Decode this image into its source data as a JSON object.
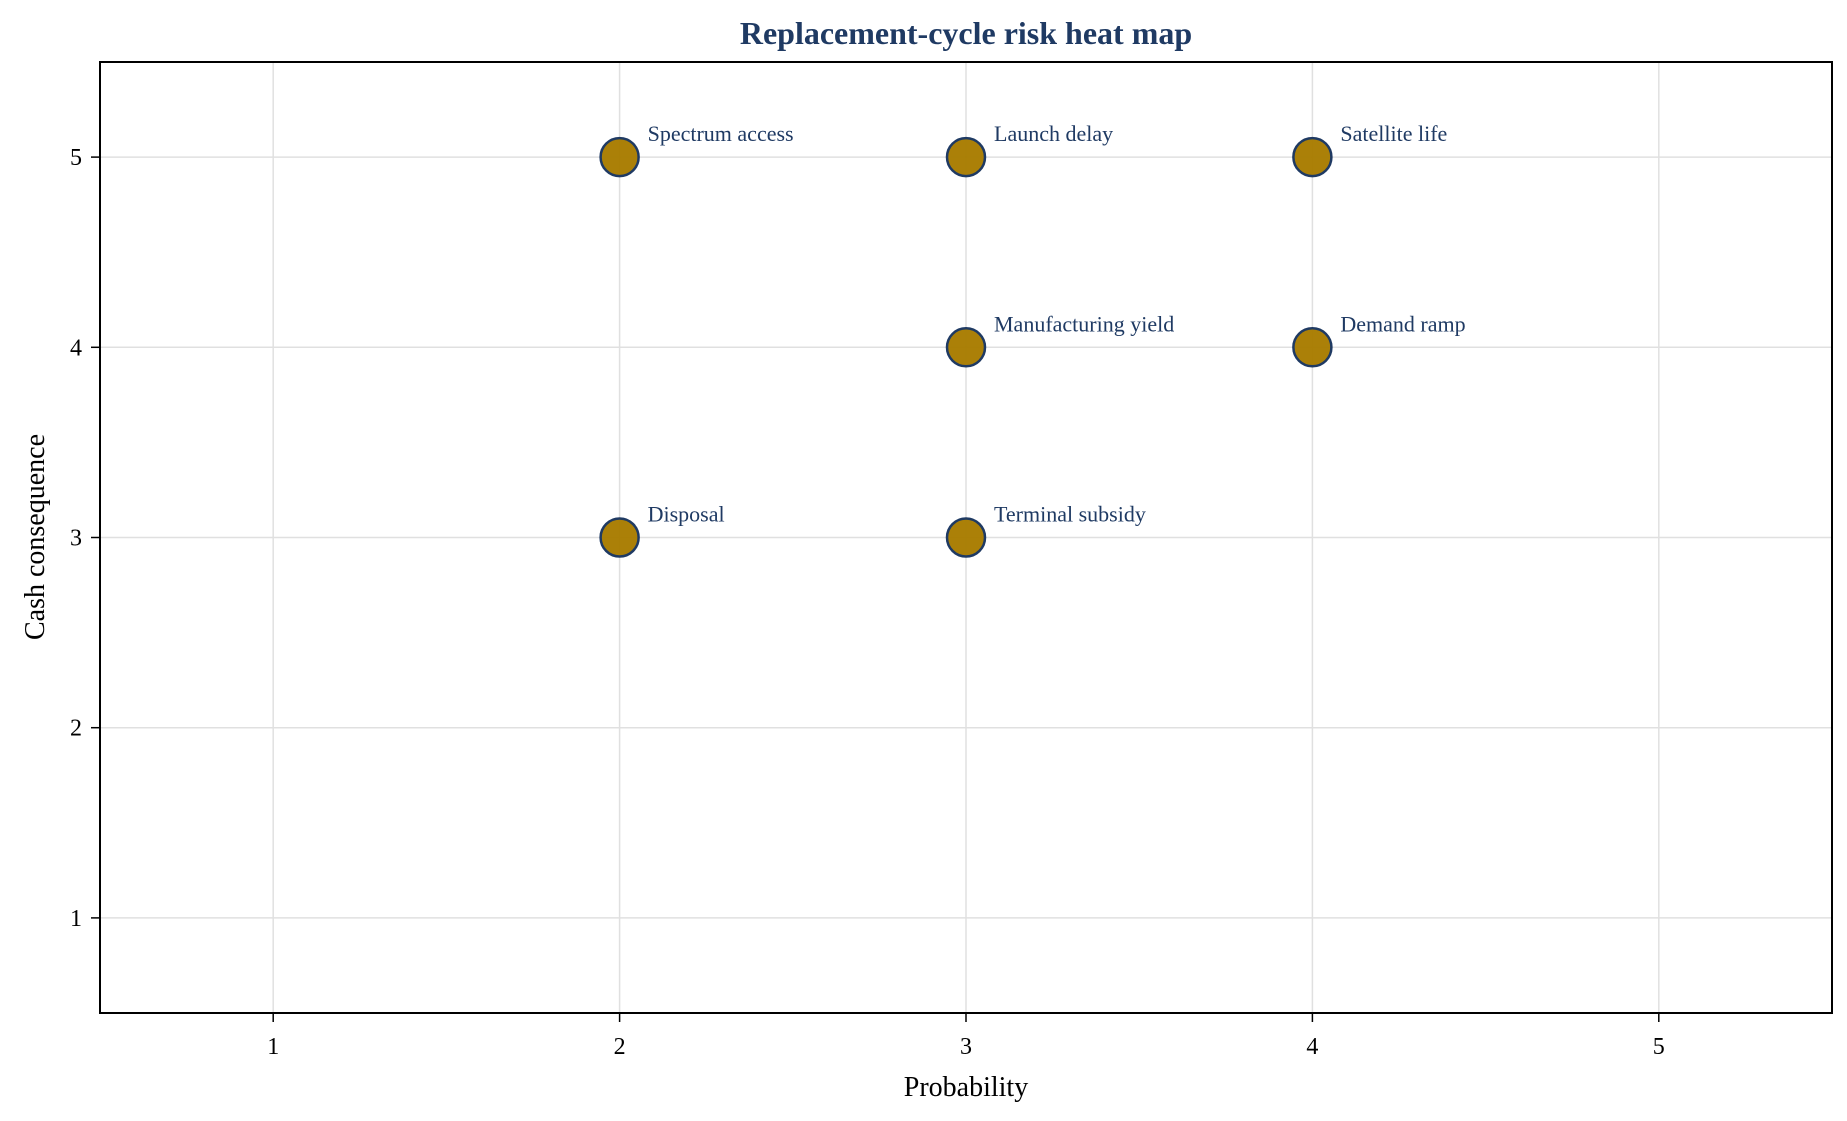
{
  "chart_data": {
    "type": "scatter",
    "title": "Replacement-cycle risk heat map",
    "xlabel": "Probability",
    "ylabel": "Cash consequence",
    "xlim": [
      0.5,
      5.5
    ],
    "ylim": [
      0.5,
      5.5
    ],
    "xticks": [
      "1",
      "2",
      "3",
      "4",
      "5"
    ],
    "yticks": [
      "1",
      "2",
      "3",
      "4",
      "5"
    ],
    "grid": true,
    "legend": "none",
    "colors": {
      "marker_fill": "#A87C00",
      "marker_edge": "#1F3A63",
      "title": "#1F3A63",
      "annotation": "#1F3A63",
      "grid": "#e0e0e0",
      "axes": "#000000"
    },
    "points": [
      {
        "label": "Spectrum access",
        "x": 2,
        "y": 5
      },
      {
        "label": "Launch delay",
        "x": 3,
        "y": 5
      },
      {
        "label": "Satellite life",
        "x": 4,
        "y": 5
      },
      {
        "label": "Manufacturing yield",
        "x": 3,
        "y": 4
      },
      {
        "label": "Demand ramp",
        "x": 4,
        "y": 4
      },
      {
        "label": "Disposal",
        "x": 2,
        "y": 3
      },
      {
        "label": "Terminal subsidy",
        "x": 3,
        "y": 3
      }
    ]
  }
}
